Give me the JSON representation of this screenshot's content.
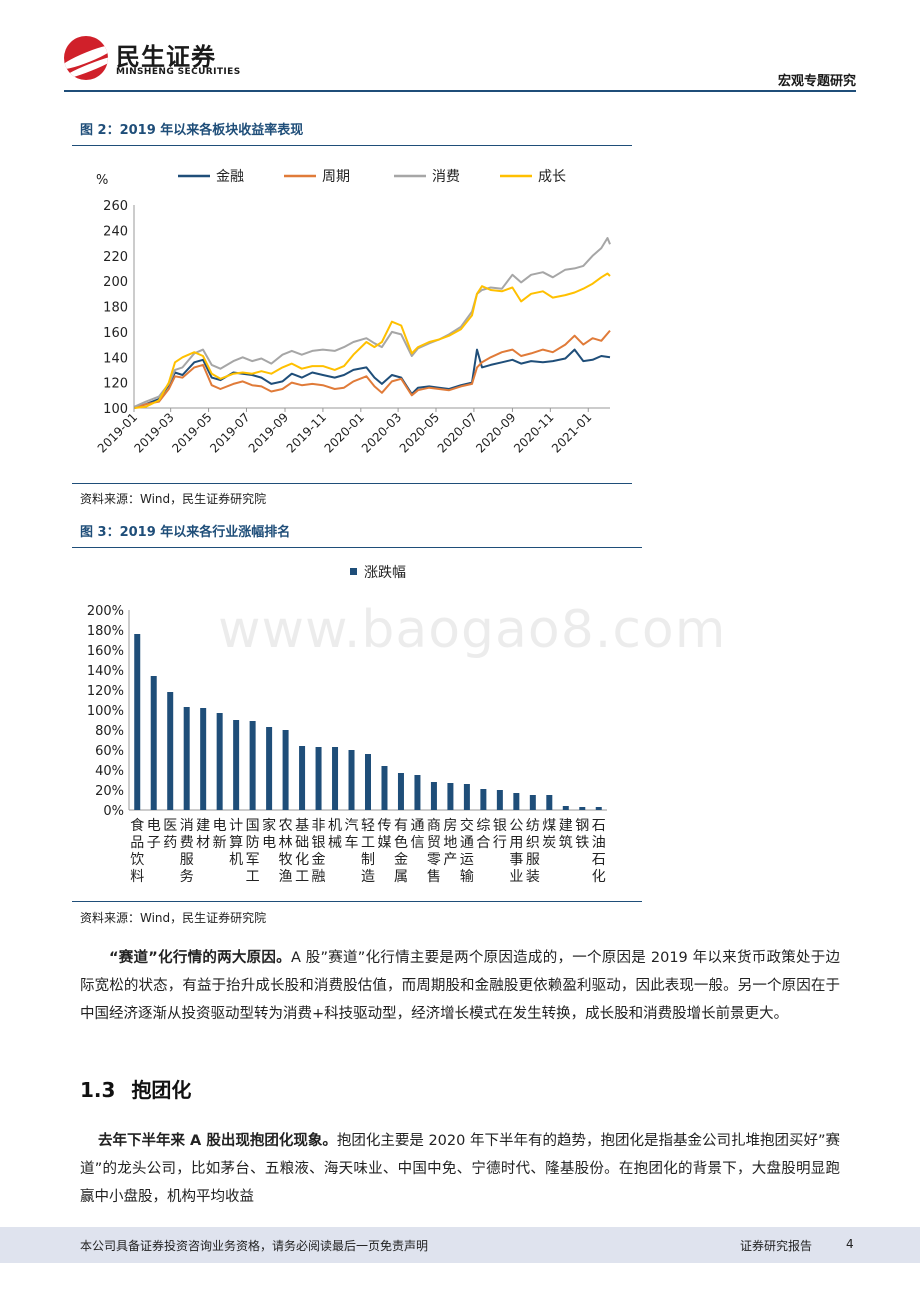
{
  "header": {
    "brand_cn": "民生证券",
    "brand_en": "MINSHENG SECURITIES",
    "report_type": "宏观专题研究"
  },
  "figure2": {
    "title": "图 2：2019 年以来各板块收益率表现",
    "source": "资料来源：Wind，民生证券研究院"
  },
  "figure3": {
    "title": "图 3：2019 年以来各行业涨幅排名",
    "source": "资料来源：Wind，民生证券研究院"
  },
  "watermark": "www.baogao8.com",
  "section": {
    "number": "1.3",
    "title": "抱团化"
  },
  "paragraphs": {
    "p1_lead": "“赛道”化行情的两大原因。",
    "p1_rest": "A 股”赛道”化行情主要是两个原因造成的，一个原因是 2019 年以来货币政策处于边际宽松的状态，有益于抬升成长股和消费股估值，而周期股和金融股更依赖盈利驱动，因此表现一般。另一个原因在于中国经济逐渐从投资驱动型转为消费+科技驱动型，经济增长模式在发生转换，成长股和消费股增长前景更大。",
    "p2_lead": "去年下半年来 A 股出现抱团化现象。",
    "p2_rest": "抱团化主要是 2020 年下半年有的趋势，抱团化是指基金公司扎堆抱团买好”赛道”的龙头公司，比如茅台、五粮液、海天味业、中国中免、宁德时代、隆基股份。在抱团化的背景下，大盘股明显跑赢中小盘股，机构平均收益"
  },
  "footer": {
    "disclaimer": "本公司具备证券投资咨询业务资格，请务必阅读最后一页免责声明",
    "report_label": "证券研究报告",
    "page": "4"
  },
  "chart_data": [
    {
      "type": "line",
      "ylabel": "%",
      "ylim": [
        100,
        260
      ],
      "yticks": [
        100,
        120,
        140,
        160,
        180,
        200,
        220,
        240,
        260
      ],
      "xrange": [
        "2019-01-01",
        "2021-02-05"
      ],
      "xticks": [
        "2019-01",
        "2019-03",
        "2019-05",
        "2019-07",
        "2019-09",
        "2019-11",
        "2020-01",
        "2020-03",
        "2020-05",
        "2020-07",
        "2020-09",
        "2020-11",
        "2021-01"
      ],
      "legend_position": "top",
      "grid": false,
      "series": [
        {
          "name": "金融",
          "color": "#1f4e79",
          "points": [
            [
              "2019-01-02",
              100
            ],
            [
              "2019-01-20",
              103
            ],
            [
              "2019-02-10",
              107
            ],
            [
              "2019-02-26",
              118
            ],
            [
              "2019-03-08",
              128
            ],
            [
              "2019-03-20",
              126
            ],
            [
              "2019-04-08",
              136
            ],
            [
              "2019-04-22",
              138
            ],
            [
              "2019-05-06",
              124
            ],
            [
              "2019-05-20",
              122
            ],
            [
              "2019-06-10",
              128
            ],
            [
              "2019-06-25",
              127
            ],
            [
              "2019-07-10",
              126
            ],
            [
              "2019-07-25",
              124
            ],
            [
              "2019-08-10",
              119
            ],
            [
              "2019-08-28",
              121
            ],
            [
              "2019-09-12",
              127
            ],
            [
              "2019-09-28",
              124
            ],
            [
              "2019-10-15",
              128
            ],
            [
              "2019-11-01",
              126
            ],
            [
              "2019-11-20",
              124
            ],
            [
              "2019-12-05",
              126
            ],
            [
              "2019-12-20",
              130
            ],
            [
              "2020-01-10",
              132
            ],
            [
              "2020-01-23",
              124
            ],
            [
              "2020-02-04",
              119
            ],
            [
              "2020-02-20",
              126
            ],
            [
              "2020-03-06",
              124
            ],
            [
              "2020-03-23",
              111
            ],
            [
              "2020-04-02",
              116
            ],
            [
              "2020-04-20",
              117
            ],
            [
              "2020-05-06",
              116
            ],
            [
              "2020-05-22",
              115
            ],
            [
              "2020-06-10",
              118
            ],
            [
              "2020-06-28",
              120
            ],
            [
              "2020-07-06",
              146
            ],
            [
              "2020-07-14",
              132
            ],
            [
              "2020-07-28",
              134
            ],
            [
              "2020-08-15",
              136
            ],
            [
              "2020-09-01",
              138
            ],
            [
              "2020-09-15",
              135
            ],
            [
              "2020-10-01",
              137
            ],
            [
              "2020-10-20",
              136
            ],
            [
              "2020-11-05",
              137
            ],
            [
              "2020-11-25",
              139
            ],
            [
              "2020-12-10",
              146
            ],
            [
              "2020-12-24",
              137
            ],
            [
              "2021-01-08",
              138
            ],
            [
              "2021-01-22",
              141
            ],
            [
              "2021-02-05",
              140
            ]
          ]
        },
        {
          "name": "周期",
          "color": "#e07b39",
          "points": [
            [
              "2019-01-02",
              100
            ],
            [
              "2019-01-20",
              103
            ],
            [
              "2019-02-10",
              105
            ],
            [
              "2019-02-26",
              115
            ],
            [
              "2019-03-08",
              125
            ],
            [
              "2019-03-20",
              124
            ],
            [
              "2019-04-08",
              132
            ],
            [
              "2019-04-22",
              134
            ],
            [
              "2019-05-06",
              118
            ],
            [
              "2019-05-20",
              115
            ],
            [
              "2019-06-10",
              119
            ],
            [
              "2019-06-25",
              121
            ],
            [
              "2019-07-10",
              118
            ],
            [
              "2019-07-25",
              117
            ],
            [
              "2019-08-10",
              113
            ],
            [
              "2019-08-28",
              115
            ],
            [
              "2019-09-12",
              120
            ],
            [
              "2019-09-28",
              118
            ],
            [
              "2019-10-15",
              119
            ],
            [
              "2019-11-01",
              118
            ],
            [
              "2019-11-20",
              115
            ],
            [
              "2019-12-05",
              116
            ],
            [
              "2019-12-20",
              121
            ],
            [
              "2020-01-10",
              125
            ],
            [
              "2020-01-23",
              117
            ],
            [
              "2020-02-04",
              112
            ],
            [
              "2020-02-20",
              121
            ],
            [
              "2020-03-06",
              123
            ],
            [
              "2020-03-23",
              110
            ],
            [
              "2020-04-02",
              114
            ],
            [
              "2020-04-20",
              116
            ],
            [
              "2020-05-06",
              115
            ],
            [
              "2020-05-22",
              114
            ],
            [
              "2020-06-10",
              117
            ],
            [
              "2020-06-28",
              119
            ],
            [
              "2020-07-06",
              132
            ],
            [
              "2020-07-14",
              136
            ],
            [
              "2020-07-28",
              140
            ],
            [
              "2020-08-15",
              144
            ],
            [
              "2020-09-01",
              146
            ],
            [
              "2020-09-15",
              141
            ],
            [
              "2020-10-01",
              143
            ],
            [
              "2020-10-20",
              146
            ],
            [
              "2020-11-05",
              144
            ],
            [
              "2020-11-25",
              150
            ],
            [
              "2020-12-10",
              157
            ],
            [
              "2020-12-24",
              150
            ],
            [
              "2021-01-08",
              155
            ],
            [
              "2021-01-22",
              153
            ],
            [
              "2021-02-05",
              161
            ]
          ]
        },
        {
          "name": "消费",
          "color": "#a6a6a6",
          "points": [
            [
              "2019-01-02",
              101
            ],
            [
              "2019-01-20",
              105
            ],
            [
              "2019-02-10",
              109
            ],
            [
              "2019-02-26",
              119
            ],
            [
              "2019-03-08",
              130
            ],
            [
              "2019-03-20",
              132
            ],
            [
              "2019-04-08",
              143
            ],
            [
              "2019-04-22",
              146
            ],
            [
              "2019-05-06",
              134
            ],
            [
              "2019-05-20",
              131
            ],
            [
              "2019-06-10",
              137
            ],
            [
              "2019-06-25",
              140
            ],
            [
              "2019-07-10",
              137
            ],
            [
              "2019-07-25",
              139
            ],
            [
              "2019-08-10",
              135
            ],
            [
              "2019-08-28",
              142
            ],
            [
              "2019-09-12",
              145
            ],
            [
              "2019-09-28",
              142
            ],
            [
              "2019-10-15",
              145
            ],
            [
              "2019-11-01",
              146
            ],
            [
              "2019-11-20",
              145
            ],
            [
              "2019-12-05",
              148
            ],
            [
              "2019-12-20",
              152
            ],
            [
              "2020-01-10",
              155
            ],
            [
              "2020-01-23",
              151
            ],
            [
              "2020-02-04",
              148
            ],
            [
              "2020-02-20",
              160
            ],
            [
              "2020-03-06",
              158
            ],
            [
              "2020-03-23",
              141
            ],
            [
              "2020-04-02",
              147
            ],
            [
              "2020-04-20",
              151
            ],
            [
              "2020-05-06",
              154
            ],
            [
              "2020-05-22",
              158
            ],
            [
              "2020-06-10",
              164
            ],
            [
              "2020-06-28",
              176
            ],
            [
              "2020-07-06",
              190
            ],
            [
              "2020-07-14",
              193
            ],
            [
              "2020-07-28",
              195
            ],
            [
              "2020-08-15",
              194
            ],
            [
              "2020-09-01",
              205
            ],
            [
              "2020-09-15",
              199
            ],
            [
              "2020-10-01",
              205
            ],
            [
              "2020-10-20",
              207
            ],
            [
              "2020-11-05",
              203
            ],
            [
              "2020-11-25",
              209
            ],
            [
              "2020-12-10",
              210
            ],
            [
              "2020-12-24",
              212
            ],
            [
              "2021-01-08",
              220
            ],
            [
              "2021-01-22",
              226
            ],
            [
              "2021-02-01",
              234
            ],
            [
              "2021-02-05",
              229
            ]
          ]
        },
        {
          "name": "成长",
          "color": "#ffc000",
          "points": [
            [
              "2019-01-02",
              100
            ],
            [
              "2019-01-20",
              101
            ],
            [
              "2019-02-10",
              106
            ],
            [
              "2019-02-26",
              120
            ],
            [
              "2019-03-08",
              136
            ],
            [
              "2019-03-20",
              140
            ],
            [
              "2019-04-08",
              144
            ],
            [
              "2019-04-22",
              141
            ],
            [
              "2019-05-06",
              127
            ],
            [
              "2019-05-20",
              123
            ],
            [
              "2019-06-10",
              127
            ],
            [
              "2019-06-25",
              128
            ],
            [
              "2019-07-10",
              127
            ],
            [
              "2019-07-25",
              129
            ],
            [
              "2019-08-10",
              127
            ],
            [
              "2019-08-28",
              132
            ],
            [
              "2019-09-12",
              135
            ],
            [
              "2019-09-28",
              131
            ],
            [
              "2019-10-15",
              133
            ],
            [
              "2019-11-01",
              133
            ],
            [
              "2019-11-20",
              130
            ],
            [
              "2019-12-05",
              133
            ],
            [
              "2019-12-20",
              142
            ],
            [
              "2020-01-10",
              152
            ],
            [
              "2020-01-23",
              148
            ],
            [
              "2020-02-04",
              152
            ],
            [
              "2020-02-20",
              168
            ],
            [
              "2020-03-06",
              165
            ],
            [
              "2020-03-23",
              143
            ],
            [
              "2020-04-02",
              148
            ],
            [
              "2020-04-20",
              152
            ],
            [
              "2020-05-06",
              154
            ],
            [
              "2020-05-22",
              157
            ],
            [
              "2020-06-10",
              162
            ],
            [
              "2020-06-28",
              173
            ],
            [
              "2020-07-06",
              190
            ],
            [
              "2020-07-14",
              196
            ],
            [
              "2020-07-28",
              193
            ],
            [
              "2020-08-15",
              192
            ],
            [
              "2020-09-01",
              195
            ],
            [
              "2020-09-15",
              184
            ],
            [
              "2020-10-01",
              190
            ],
            [
              "2020-10-20",
              192
            ],
            [
              "2020-11-05",
              187
            ],
            [
              "2020-11-25",
              189
            ],
            [
              "2020-12-10",
              191
            ],
            [
              "2020-12-24",
              194
            ],
            [
              "2021-01-08",
              198
            ],
            [
              "2021-01-22",
              203
            ],
            [
              "2021-02-01",
              206
            ],
            [
              "2021-02-05",
              204
            ]
          ]
        }
      ]
    },
    {
      "type": "bar",
      "ylim": [
        0,
        200
      ],
      "yticks": [
        "0%",
        "20%",
        "40%",
        "60%",
        "80%",
        "100%",
        "120%",
        "140%",
        "160%",
        "180%",
        "200%"
      ],
      "legend_position": "top",
      "grid": false,
      "series": [
        {
          "name": "涨跌幅",
          "color": "#1f4e79"
        }
      ],
      "categories": [
        "食品饮料",
        "电子",
        "医药",
        "消费服务",
        "建材",
        "电新",
        "计算机",
        "国防军工",
        "家电",
        "农林牧渔",
        "基础化工",
        "非银金融",
        "机械",
        "汽车",
        "轻工制造",
        "传媒",
        "有色金属",
        "通信",
        "商贸零售",
        "房地产",
        "交通运输",
        "综合",
        "银行",
        "公用事业",
        "纺织服装",
        "煤炭",
        "建筑",
        "钢铁",
        "石油石化"
      ],
      "values": [
        176,
        134,
        118,
        103,
        102,
        97,
        90,
        89,
        83,
        80,
        64,
        63,
        63,
        60,
        56,
        44,
        37,
        35,
        28,
        27,
        26,
        21,
        20,
        17,
        15,
        15,
        4,
        3,
        3
      ]
    }
  ]
}
